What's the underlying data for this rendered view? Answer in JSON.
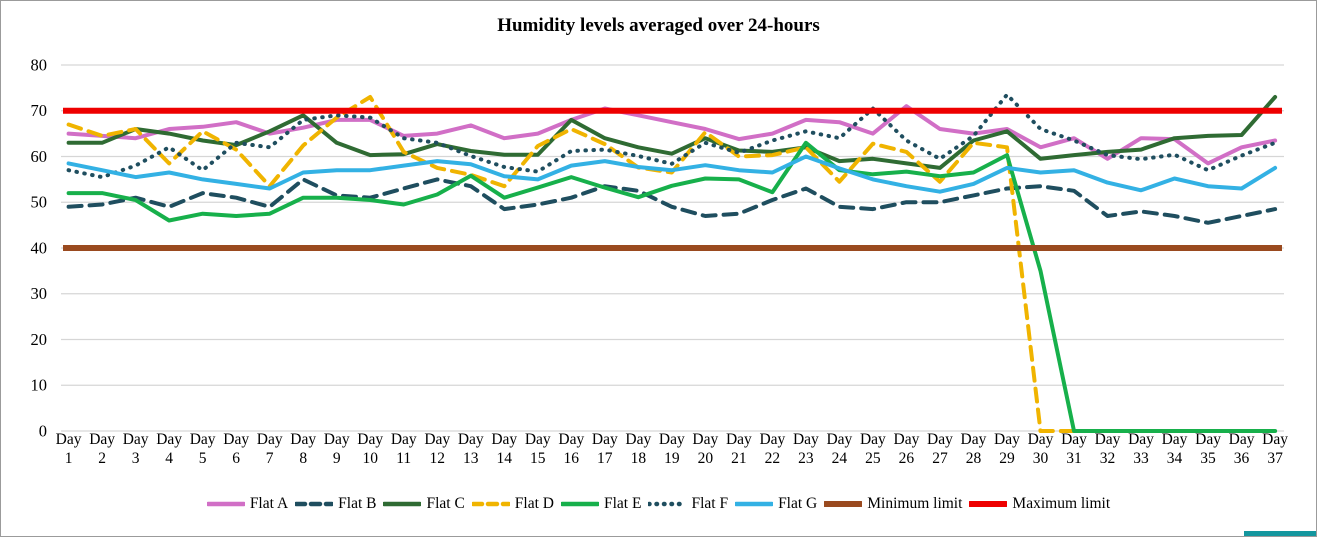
{
  "title": "Humidity levels averaged over 24-hours",
  "colors": {
    "flat_a": "#d16fc6",
    "flat_b": "#1f4e5f",
    "flat_c": "#2f6b33",
    "flat_d": "#f0b400",
    "flat_e": "#17b04b",
    "flat_f": "#1f4e5f",
    "flat_g": "#33b1e4",
    "min_limit": "#9a4a1f",
    "max_limit": "#ee0000",
    "gridline": "#d6d6d6",
    "text": "#000000"
  },
  "chart_data": {
    "type": "line",
    "title": "Humidity levels averaged over 24-hours",
    "xlabel": "",
    "ylabel": "",
    "ylim": [
      0,
      80
    ],
    "ytick_step": 10,
    "yticks": [
      0,
      10,
      20,
      30,
      40,
      50,
      60,
      70,
      80
    ],
    "grid": "horizontal",
    "legend_position": "bottom",
    "categories": [
      "Day 1",
      "Day 2",
      "Day 3",
      "Day 4",
      "Day 5",
      "Day 6",
      "Day 7",
      "Day 8",
      "Day 9",
      "Day 10",
      "Day 11",
      "Day 12",
      "Day 13",
      "Day 14",
      "Day 15",
      "Day 16",
      "Day 17",
      "Day 18",
      "Day 19",
      "Day 20",
      "Day 21",
      "Day 22",
      "Day 23",
      "Day 24",
      "Day 25",
      "Day 26",
      "Day 27",
      "Day 28",
      "Day 29",
      "Day 30",
      "Day 31",
      "Day 32",
      "Day 33",
      "Day 34",
      "Day 35",
      "Day 36",
      "Day 37"
    ],
    "series": [
      {
        "name": "Flat A",
        "style": "solid",
        "color_key": "flat_a",
        "values": [
          65,
          64.5,
          64,
          66,
          66.5,
          67.5,
          65,
          66.3,
          68,
          68,
          64.5,
          65,
          66.8,
          64,
          65,
          68,
          70.5,
          69,
          67.5,
          66,
          63.8,
          65,
          68,
          67.5,
          65,
          71,
          66,
          65,
          66,
          62,
          64,
          59.5,
          64,
          63.8,
          58.5,
          62,
          63.5
        ]
      },
      {
        "name": "Flat B",
        "style": "dashed",
        "color_key": "flat_b",
        "values": [
          49,
          49.5,
          51,
          49,
          52,
          51,
          49,
          55,
          51.5,
          51,
          53,
          55,
          53.5,
          48.5,
          49.5,
          51,
          53.5,
          52.5,
          49,
          47,
          47.5,
          50.5,
          53,
          49,
          48.5,
          50,
          50,
          51.5,
          53,
          53.5,
          52.5,
          47,
          48,
          47,
          45.5,
          47,
          48.5
        ]
      },
      {
        "name": "Flat C",
        "style": "solid",
        "color_key": "flat_c",
        "values": [
          63,
          63,
          66,
          65,
          63.5,
          62.5,
          65.5,
          69,
          63,
          60.3,
          60.5,
          62.7,
          61.2,
          60.4,
          60.4,
          68,
          64,
          62,
          60.6,
          64,
          61.3,
          61,
          62,
          59,
          59.5,
          58.5,
          57.5,
          63.5,
          65.5,
          59.5,
          60.3,
          61,
          61.5,
          64,
          64.5,
          64.7,
          73
        ]
      },
      {
        "name": "Flat D",
        "style": "dashed",
        "color_key": "flat_d",
        "values": [
          67,
          64.5,
          66,
          58.5,
          65.5,
          61.5,
          53.5,
          62.4,
          68.5,
          73,
          61,
          57.5,
          56,
          53.5,
          62.3,
          66,
          62.7,
          57.6,
          56.5,
          65.3,
          60,
          60.3,
          62,
          54.5,
          62.8,
          61,
          54.5,
          63,
          62,
          0,
          0,
          null,
          null,
          null,
          null,
          null,
          null
        ]
      },
      {
        "name": "Flat E",
        "style": "solid",
        "color_key": "flat_e",
        "values": [
          52,
          52,
          50.5,
          46,
          47.5,
          47,
          47.5,
          51,
          51,
          50.5,
          49.5,
          51.7,
          55.8,
          51,
          53.2,
          55.5,
          53.2,
          51.1,
          53.6,
          55.2,
          55,
          52.2,
          63,
          57,
          56.1,
          56.7,
          55.7,
          56.5,
          60.3,
          35,
          0,
          0,
          0,
          0,
          0,
          0,
          0
        ]
      },
      {
        "name": "Flat F",
        "style": "dotted",
        "color_key": "flat_f",
        "values": [
          57,
          55.5,
          58,
          62,
          57,
          63,
          62,
          68,
          69,
          68.5,
          64,
          63,
          60.1,
          57.7,
          56.7,
          61.2,
          61.5,
          60.1,
          58.4,
          63,
          60.8,
          63.5,
          65.5,
          64,
          70.5,
          63.5,
          59.5,
          64.5,
          73.5,
          66,
          63.5,
          60.3,
          59.4,
          60.4,
          57,
          60.2,
          63
        ]
      },
      {
        "name": "Flat G",
        "style": "solid",
        "color_key": "flat_g",
        "values": [
          58.5,
          57,
          55.5,
          56.5,
          55,
          54,
          53,
          56.5,
          57,
          57,
          58,
          59,
          58.3,
          55.7,
          55,
          58,
          59,
          57.7,
          57,
          58.1,
          57,
          56.5,
          60,
          57.4,
          55,
          53.5,
          52.3,
          54,
          57.5,
          56.5,
          57,
          54.3,
          52.6,
          55.2,
          53.5,
          53,
          57.5
        ]
      },
      {
        "name": "Minimum limit",
        "style": "limit",
        "color_key": "min_limit",
        "constant": 40
      },
      {
        "name": "Maximum limit",
        "style": "limit",
        "color_key": "max_limit",
        "constant": 70
      }
    ]
  }
}
